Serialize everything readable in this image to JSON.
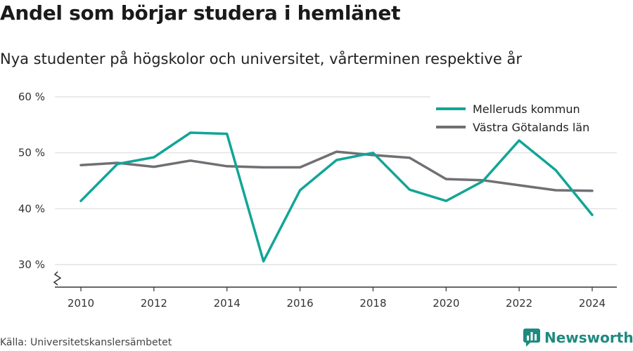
{
  "header": {
    "title": "Andel som börjar studera i hemlänet",
    "subtitle": "Nya studenter på högskolor och universitet, vårterminen respektive år"
  },
  "footer": {
    "source": "Källa: Universitetskanslersämbetet",
    "brand": "Newsworthy"
  },
  "colors": {
    "melleruds": "#12a596",
    "vastra": "#6f6f74",
    "grid": "#dddddd",
    "brand": "#1f8a7f"
  },
  "chart_data": {
    "type": "line",
    "x": [
      2010,
      2011,
      2012,
      2013,
      2014,
      2015,
      2016,
      2017,
      2018,
      2019,
      2020,
      2021,
      2022,
      2023,
      2024
    ],
    "series": [
      {
        "name": "Melleruds kommun",
        "values": [
          41.4,
          48.0,
          49.2,
          53.6,
          53.4,
          30.6,
          43.3,
          48.7,
          50.0,
          43.4,
          41.4,
          44.9,
          52.2,
          46.9,
          38.9
        ]
      },
      {
        "name": "Västra Götalands län",
        "values": [
          47.8,
          48.2,
          47.5,
          48.6,
          47.6,
          47.4,
          47.4,
          50.2,
          49.6,
          49.1,
          45.3,
          45.1,
          44.2,
          43.3,
          43.2
        ]
      }
    ],
    "xticks": [
      2010,
      2012,
      2014,
      2016,
      2018,
      2020,
      2022,
      2024
    ],
    "yticks": [
      {
        "value": 30,
        "label": "30 %"
      },
      {
        "value": 40,
        "label": "40 %"
      },
      {
        "value": 50,
        "label": "50 %"
      },
      {
        "value": 60,
        "label": "60 %"
      }
    ],
    "ylim": [
      30,
      60
    ],
    "xlabel": "",
    "ylabel": "",
    "grid": true,
    "y_axis_break": true,
    "legend": "top-right"
  }
}
